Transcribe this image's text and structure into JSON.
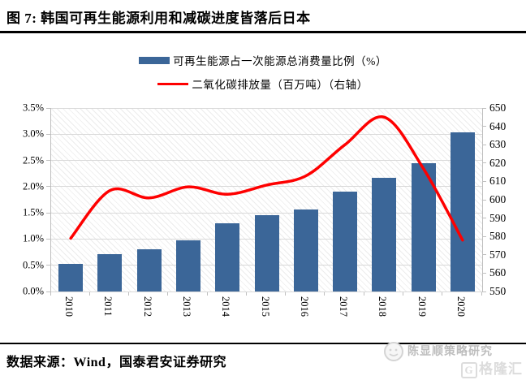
{
  "figure": {
    "title": "图 7:  韩国可再生能源利用和减碳进度皆落后日本",
    "source": "数据来源：Wind，国泰君安证券研究",
    "watermark": {
      "name": "陈显顺策略研究",
      "logo_letter": "G",
      "logo_text": "格隆汇"
    }
  },
  "legend": {
    "items": [
      {
        "label": "可再生能源占一次能源总消费量比例（%）",
        "type": "bar"
      },
      {
        "label": "二氧化碳排放量（百万吨）（右轴）",
        "type": "line"
      }
    ]
  },
  "colors": {
    "bar": "#3B6698",
    "line": "#FE0000",
    "grid": "#d9d9d9",
    "axis": "#bfbfbf"
  },
  "chart_data": {
    "type": "bar",
    "title": "",
    "categories": [
      "2010",
      "2011",
      "2012",
      "2013",
      "2014",
      "2015",
      "2016",
      "2017",
      "2018",
      "2019",
      "2020"
    ],
    "series": [
      {
        "name": "可再生能源占一次能源总消费量比例（%）",
        "type": "bar",
        "axis": "left",
        "values": [
          0.52,
          0.72,
          0.8,
          0.98,
          1.3,
          1.46,
          1.56,
          1.9,
          2.17,
          2.44,
          3.03
        ]
      },
      {
        "name": "二氧化碳排放量（百万吨）（右轴）",
        "type": "line",
        "axis": "right",
        "values": [
          579,
          605,
          601,
          607,
          603,
          608,
          613,
          630,
          645,
          617,
          578
        ]
      }
    ],
    "left_axis": {
      "min": 0,
      "max": 3.5,
      "ticks": [
        "3.5%",
        "3.0%",
        "2.5%",
        "2.0%",
        "1.5%",
        "1.0%",
        "0.5%",
        "0.0%"
      ]
    },
    "right_axis": {
      "min": 550,
      "max": 650,
      "ticks": [
        "650",
        "640",
        "630",
        "620",
        "610",
        "600",
        "590",
        "580",
        "570",
        "560",
        "550"
      ]
    },
    "grid": true,
    "legend_position": "top",
    "xlabel": "",
    "ylabel": ""
  }
}
